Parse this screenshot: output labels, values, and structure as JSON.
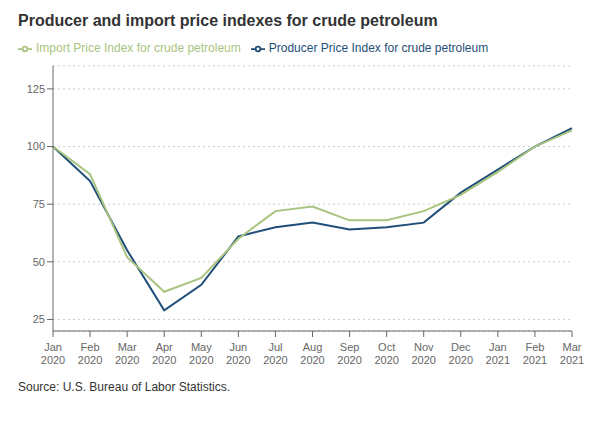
{
  "chart_data": {
    "type": "line",
    "title": "Producer and import price indexes for crude petroleum",
    "annotations": [
      "Source: U.S. Bureau of Labor Statistics."
    ],
    "categories": [
      "Jan\n2020",
      "Feb\n2020",
      "Mar\n2020",
      "Apr\n2020",
      "May\n2020",
      "Jun\n2020",
      "Jul\n2020",
      "Aug\n2020",
      "Sep\n2020",
      "Oct\n2020",
      "Nov\n2020",
      "Dec\n2020",
      "Jan\n2021",
      "Feb\n2021",
      "Mar\n2021"
    ],
    "series": [
      {
        "name": "Producer Price Index for crude petroleum",
        "color": "#1f4e79",
        "values": [
          100,
          85,
          55,
          29,
          40,
          61,
          65,
          67,
          64,
          65,
          67,
          80,
          90,
          100,
          108
        ]
      },
      {
        "name": "Import Price Index for crude petroleum",
        "color": "#a9c47f",
        "values": [
          100,
          88,
          52,
          37,
          43,
          60,
          72,
          74,
          68,
          68,
          72,
          79,
          89,
          100,
          107
        ]
      }
    ],
    "ylim": [
      20,
      135
    ],
    "yticks": [
      25,
      50,
      75,
      100,
      125
    ],
    "grid": true,
    "legend": "upper left"
  }
}
